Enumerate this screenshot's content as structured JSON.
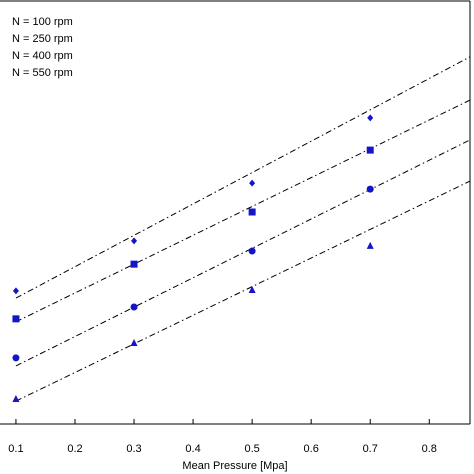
{
  "chart_data": {
    "type": "scatter",
    "xlabel": "Mean Pressure [Mpa]",
    "x": [
      0.1,
      0.3,
      0.5,
      0.7
    ],
    "fit_x": [
      0.1,
      0.869
    ],
    "xlim": [
      0.073,
      0.869
    ],
    "xticks": [
      0.1,
      0.2,
      0.3,
      0.4,
      0.5,
      0.6,
      0.7,
      0.8
    ],
    "ylim": [
      0,
      100
    ],
    "fit_color": "#000000",
    "series": [
      {
        "name": "N = 100 rpm",
        "color": "#1414c8",
        "marker": "diamond",
        "values": [
          31.4,
          43.2,
          56.8,
          72.2
        ],
        "fit_values": [
          29.7,
          86.6
        ]
      },
      {
        "name": "N = 250 rpm",
        "color": "#1414c8",
        "marker": "square",
        "values": [
          24.8,
          37.7,
          50.0,
          64.6
        ],
        "fit_values": [
          24.1,
          76.4
        ]
      },
      {
        "name": "N = 400 rpm",
        "color": "#1414c8",
        "marker": "circle",
        "values": [
          15.6,
          27.6,
          40.8,
          55.4
        ],
        "fit_values": [
          13.7,
          67.0
        ]
      },
      {
        "name": "N = 550 rpm",
        "color": "#1414c8",
        "marker": "triangle",
        "values": [
          5.9,
          19.1,
          31.6,
          42.0
        ],
        "fit_values": [
          5.4,
          57.3
        ]
      }
    ]
  }
}
